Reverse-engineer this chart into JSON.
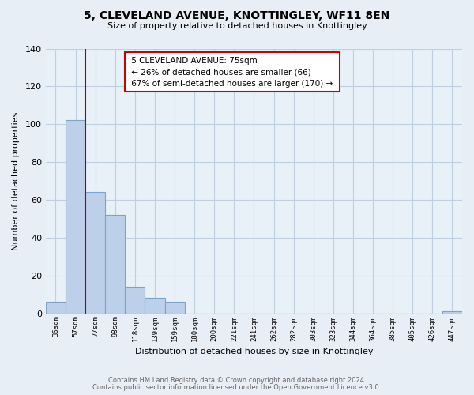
{
  "title": "5, CLEVELAND AVENUE, KNOTTINGLEY, WF11 8EN",
  "subtitle": "Size of property relative to detached houses in Knottingley",
  "xlabel": "Distribution of detached houses by size in Knottingley",
  "ylabel": "Number of detached properties",
  "bar_labels": [
    "36sqm",
    "57sqm",
    "77sqm",
    "98sqm",
    "118sqm",
    "139sqm",
    "159sqm",
    "180sqm",
    "200sqm",
    "221sqm",
    "241sqm",
    "262sqm",
    "282sqm",
    "303sqm",
    "323sqm",
    "344sqm",
    "364sqm",
    "385sqm",
    "405sqm",
    "426sqm",
    "447sqm"
  ],
  "bar_values": [
    6,
    102,
    64,
    52,
    14,
    8,
    6,
    0,
    0,
    0,
    0,
    0,
    0,
    0,
    0,
    0,
    0,
    0,
    0,
    0,
    1
  ],
  "bar_color": "#bdd0e9",
  "bar_edge_color": "#7ba3cc",
  "vline_x": 1.5,
  "vline_color": "#aa0000",
  "ylim": [
    0,
    140
  ],
  "yticks": [
    0,
    20,
    40,
    60,
    80,
    100,
    120,
    140
  ],
  "annotation_title": "5 CLEVELAND AVENUE: 75sqm",
  "annotation_line1": "← 26% of detached houses are smaller (66)",
  "annotation_line2": "67% of semi-detached houses are larger (170) →",
  "footer_line1": "Contains HM Land Registry data © Crown copyright and database right 2024.",
  "footer_line2": "Contains public sector information licensed under the Open Government Licence v3.0.",
  "bg_color": "#e8eef5",
  "plot_bg_color": "#e8f0f8",
  "grid_color": "#c0cfe0"
}
